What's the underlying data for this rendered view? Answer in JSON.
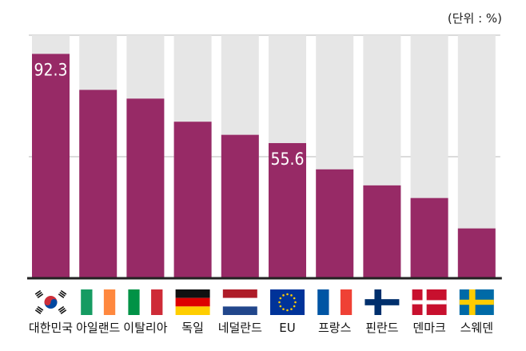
{
  "chart_data": {
    "type": "bar",
    "unit_label": "(단위 : %)",
    "categories": [
      "대한민국",
      "아일랜드",
      "이탈리아",
      "독일",
      "네덜란드",
      "EU",
      "프랑스",
      "핀란드",
      "덴마크",
      "스웨덴"
    ],
    "values": [
      92.3,
      77.5,
      73.9,
      64.4,
      59.0,
      55.6,
      44.8,
      38.2,
      33.0,
      20.5
    ],
    "data_labels": {
      "0": "92.3",
      "5": "55.6"
    },
    "flags": [
      "korea-flag-icon",
      "ireland-flag-icon",
      "italy-flag-icon",
      "germany-flag-icon",
      "netherlands-flag-icon",
      "eu-flag-icon",
      "france-flag-icon",
      "finland-flag-icon",
      "denmark-flag-icon",
      "sweden-flag-icon"
    ],
    "ylim": [
      0,
      100
    ],
    "grid": true,
    "colors": {
      "bar": "#972a66",
      "background_bar": "#e6e6e6",
      "grid": "#cfcfcf",
      "axis": "#222222"
    }
  }
}
